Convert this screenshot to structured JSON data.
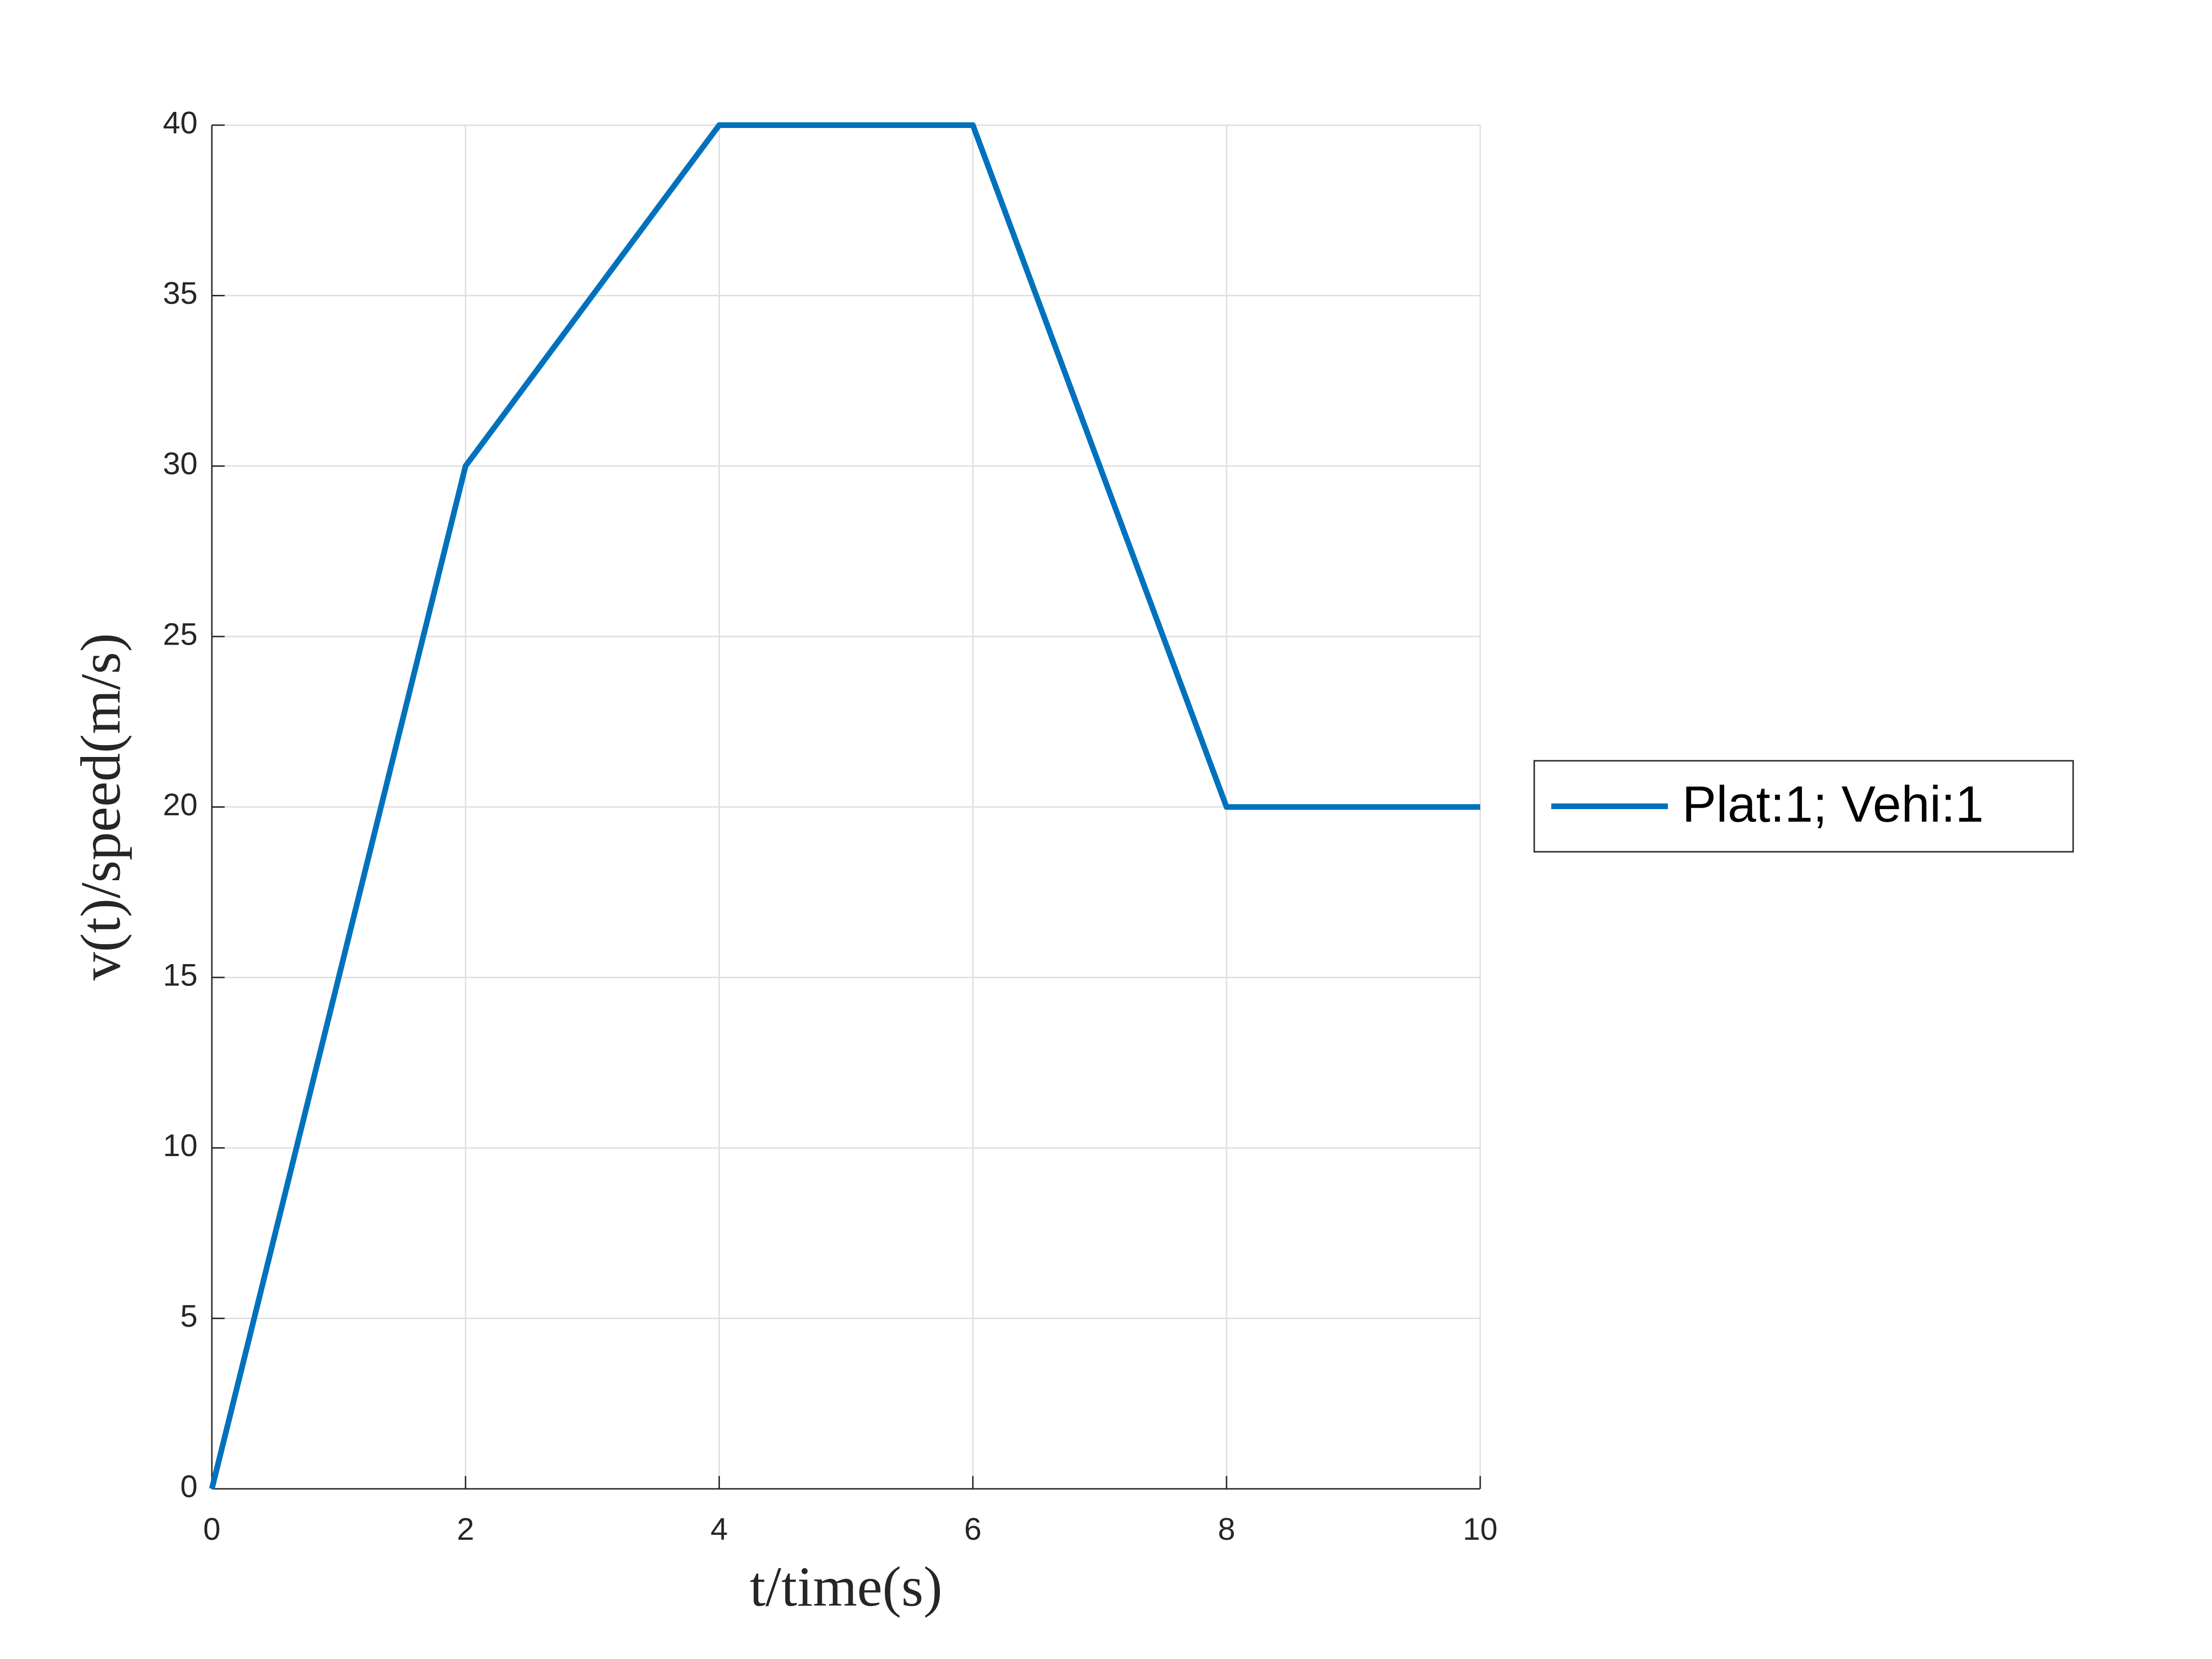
{
  "chart_data": {
    "type": "line",
    "xlabel": "t/time(s)",
    "ylabel": "v(t)/speed(m/s)",
    "x": [
      0,
      2,
      4,
      6,
      8,
      10
    ],
    "series": [
      {
        "name": "Plat:1; Vehi:1",
        "color": "#0072bd",
        "values": [
          0,
          30,
          40,
          40,
          20,
          20
        ]
      }
    ],
    "xlim": [
      0,
      10
    ],
    "xticks": [
      0,
      2,
      4,
      6,
      8,
      10
    ],
    "ylim": [
      0,
      40
    ],
    "yticks": [
      0,
      5,
      10,
      15,
      20,
      25,
      30,
      35,
      40
    ],
    "grid": true,
    "legend": "outside-right"
  }
}
